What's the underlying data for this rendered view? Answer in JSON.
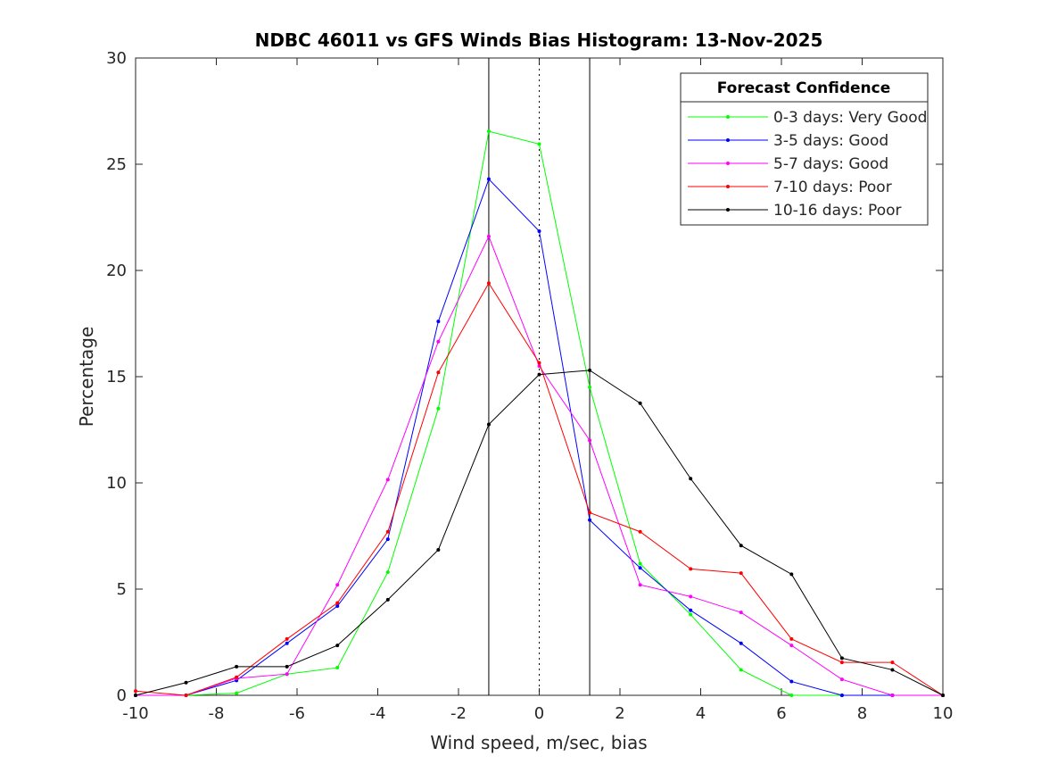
{
  "chart_data": {
    "type": "line",
    "title": "NDBC 46011 vs GFS Winds Bias Histogram: 13-Nov-2025",
    "xlabel": "Wind speed, m/sec, bias",
    "ylabel": "Percentage",
    "xlim": [
      -10,
      10
    ],
    "ylim": [
      0,
      30
    ],
    "xticks": [
      -10,
      -8,
      -6,
      -4,
      -2,
      0,
      2,
      4,
      6,
      8,
      10
    ],
    "yticks": [
      0,
      5,
      10,
      15,
      20,
      25,
      30
    ],
    "grid": false,
    "reference_lines": [
      {
        "x": -1.25,
        "style": "solid"
      },
      {
        "x": 0,
        "style": "dotted"
      },
      {
        "x": 1.25,
        "style": "solid"
      }
    ],
    "legend": {
      "title": "Forecast Confidence",
      "placement": "top-right"
    },
    "x": [
      -10,
      -8.75,
      -7.5,
      -6.25,
      -5,
      -3.75,
      -2.5,
      -1.25,
      0,
      1.25,
      2.5,
      3.75,
      5,
      6.25,
      7.5,
      8.75,
      10
    ],
    "series": [
      {
        "name": "0-3 days: Very Good",
        "color": "#00ff00",
        "values": [
          0,
          0,
          0.1,
          1.0,
          1.3,
          5.8,
          13.5,
          26.55,
          25.95,
          14.5,
          6.2,
          3.8,
          1.2,
          0,
          0,
          0,
          0
        ]
      },
      {
        "name": "3-5 days: Good",
        "color": "#0000ff",
        "values": [
          0,
          0,
          0.7,
          2.45,
          4.2,
          7.35,
          17.6,
          24.3,
          21.85,
          8.25,
          6.0,
          4.0,
          2.45,
          0.65,
          0,
          0,
          0
        ]
      },
      {
        "name": "5-7 days: Good",
        "color": "#ff00ff",
        "values": [
          0,
          0,
          0.8,
          1.0,
          5.2,
          10.15,
          16.65,
          21.6,
          15.5,
          12.0,
          5.2,
          4.65,
          3.9,
          2.35,
          0.75,
          0,
          0
        ]
      },
      {
        "name": "7-10 days: Poor",
        "color": "#ff0000",
        "values": [
          0.2,
          0,
          0.85,
          2.65,
          4.35,
          7.7,
          15.2,
          19.4,
          15.65,
          8.6,
          7.7,
          5.95,
          5.75,
          2.65,
          1.55,
          1.55,
          0
        ]
      },
      {
        "name": "10-16 days: Poor",
        "color": "#000000",
        "values": [
          0,
          0.6,
          1.35,
          1.35,
          2.35,
          4.5,
          6.85,
          12.75,
          15.1,
          15.3,
          13.75,
          10.2,
          7.05,
          5.7,
          1.75,
          1.2,
          0
        ]
      }
    ]
  }
}
